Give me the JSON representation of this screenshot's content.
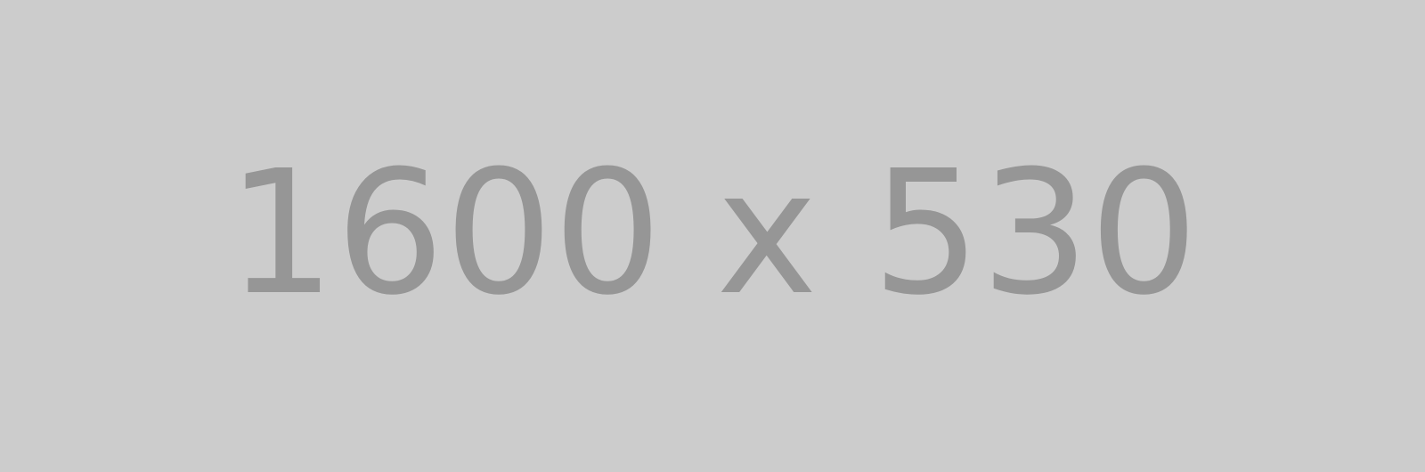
{
  "placeholder": {
    "label": "1600 x 530",
    "background_color": "#cccccc",
    "text_color": "#969696"
  }
}
